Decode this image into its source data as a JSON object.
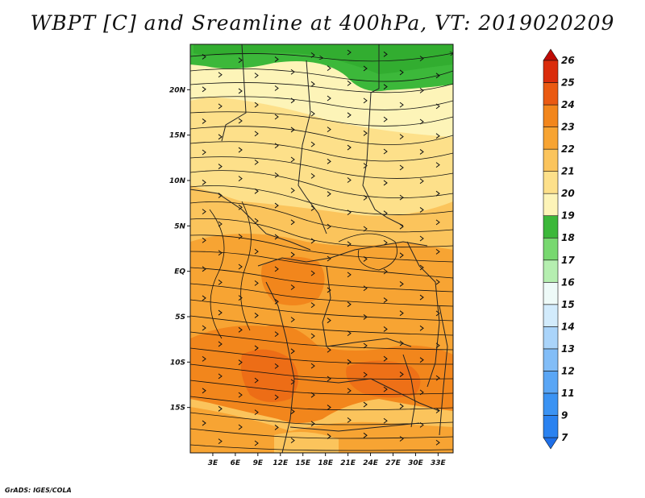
{
  "title": "WBPT [C] and Sreamline at 400hPa, VT: 2019020209",
  "credit": "GrADS: IGES/COLA",
  "map": {
    "lon_range": [
      0,
      35
    ],
    "lat_range": [
      -20,
      25
    ],
    "lat_ticks": [
      {
        "lat": 20,
        "label": "20N"
      },
      {
        "lat": 15,
        "label": "15N"
      },
      {
        "lat": 10,
        "label": "10N"
      },
      {
        "lat": 5,
        "label": "5N"
      },
      {
        "lat": 0,
        "label": "EQ"
      },
      {
        "lat": -5,
        "label": "5S"
      },
      {
        "lat": -10,
        "label": "10S"
      },
      {
        "lat": -15,
        "label": "15S"
      }
    ],
    "lon_ticks": [
      {
        "lon": 3,
        "label": "3E"
      },
      {
        "lon": 6,
        "label": "6E"
      },
      {
        "lon": 9,
        "label": "9E"
      },
      {
        "lon": 12,
        "label": "12E"
      },
      {
        "lon": 15,
        "label": "15E"
      },
      {
        "lon": 18,
        "label": "18E"
      },
      {
        "lon": 21,
        "label": "21E"
      },
      {
        "lon": 24,
        "label": "24E"
      },
      {
        "lon": 27,
        "label": "27E"
      },
      {
        "lon": 30,
        "label": "30E"
      },
      {
        "lon": 33,
        "label": "33E"
      }
    ]
  },
  "colorbar": {
    "levels": [
      "7",
      "9",
      "11",
      "12",
      "13",
      "14",
      "15",
      "16",
      "17",
      "18",
      "19",
      "20",
      "21",
      "22",
      "23",
      "24",
      "25",
      "26"
    ],
    "colors": [
      "#1e6fe8",
      "#2a82f0",
      "#3b93f3",
      "#5aa6f5",
      "#82bdf7",
      "#aad4fa",
      "#d2ebfc",
      "#eefaf8",
      "#b5eeb0",
      "#78d870",
      "#3cb83a",
      "#fdf4b8",
      "#fde08a",
      "#fbc45c",
      "#f7a433",
      "#f2861c",
      "#ea5a12",
      "#da2c0c",
      "#bf0b06"
    ]
  }
}
